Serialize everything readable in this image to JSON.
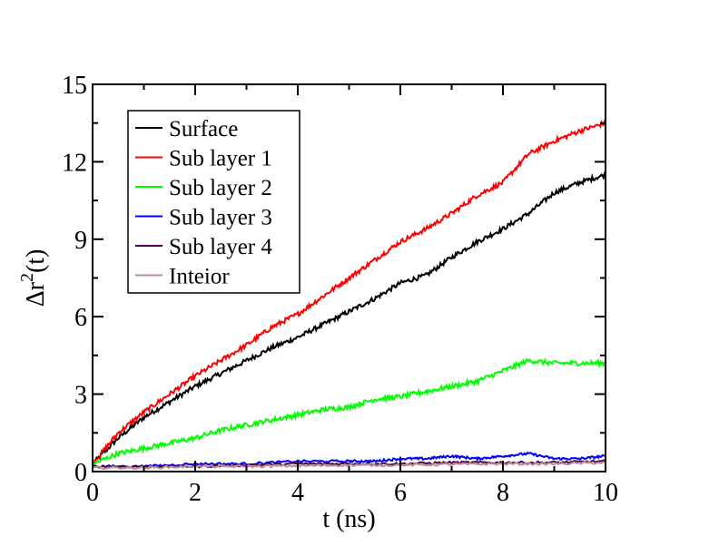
{
  "chart_data": {
    "type": "line",
    "xlabel": "t (ns)",
    "ylabel": {
      "base": "Δr",
      "sup": "2",
      "suffix": "(t)"
    },
    "xlim": [
      0,
      10
    ],
    "ylim": [
      0,
      15
    ],
    "xticks": [
      0,
      2,
      4,
      6,
      8,
      10
    ],
    "yticks": [
      0,
      3,
      6,
      9,
      12,
      15
    ],
    "grid": false,
    "legend_position": "top-left",
    "series": [
      {
        "name": "Surface",
        "color": "#000000",
        "points": [
          [
            0,
            0.3
          ],
          [
            0.5,
            1.3
          ],
          [
            1,
            2.1
          ],
          [
            1.5,
            2.7
          ],
          [
            2,
            3.3
          ],
          [
            2.5,
            3.8
          ],
          [
            3,
            4.3
          ],
          [
            3.5,
            4.8
          ],
          [
            4,
            5.2
          ],
          [
            4.5,
            5.7
          ],
          [
            5,
            6.2
          ],
          [
            5.5,
            6.7
          ],
          [
            6,
            7.3
          ],
          [
            6.5,
            7.6
          ],
          [
            7,
            8.3
          ],
          [
            7.5,
            8.9
          ],
          [
            8,
            9.4
          ],
          [
            8.5,
            10.0
          ],
          [
            9,
            10.8
          ],
          [
            9.5,
            11.2
          ],
          [
            10,
            11.5
          ]
        ]
      },
      {
        "name": "Sub layer 1",
        "color": "#ff0000",
        "points": [
          [
            0,
            0.3
          ],
          [
            0.5,
            1.5
          ],
          [
            1,
            2.3
          ],
          [
            1.5,
            3.0
          ],
          [
            2,
            3.7
          ],
          [
            2.5,
            4.3
          ],
          [
            3,
            4.9
          ],
          [
            3.5,
            5.6
          ],
          [
            4,
            6.1
          ],
          [
            4.5,
            6.8
          ],
          [
            5,
            7.5
          ],
          [
            5.5,
            8.2
          ],
          [
            6,
            8.9
          ],
          [
            6.5,
            9.4
          ],
          [
            7,
            10.0
          ],
          [
            7.5,
            10.7
          ],
          [
            8,
            11.2
          ],
          [
            8.5,
            12.3
          ],
          [
            9,
            12.8
          ],
          [
            9.5,
            13.2
          ],
          [
            10,
            13.5
          ]
        ]
      },
      {
        "name": "Sub layer 2",
        "color": "#00ff00",
        "points": [
          [
            0,
            0.3
          ],
          [
            0.5,
            0.7
          ],
          [
            1,
            0.9
          ],
          [
            1.5,
            1.1
          ],
          [
            2,
            1.3
          ],
          [
            2.5,
            1.6
          ],
          [
            3,
            1.8
          ],
          [
            3.5,
            2.0
          ],
          [
            4,
            2.2
          ],
          [
            4.5,
            2.4
          ],
          [
            5,
            2.5
          ],
          [
            5.5,
            2.8
          ],
          [
            6,
            2.9
          ],
          [
            6.5,
            3.1
          ],
          [
            7,
            3.3
          ],
          [
            7.5,
            3.5
          ],
          [
            8,
            3.9
          ],
          [
            8.5,
            4.3
          ],
          [
            9,
            4.2
          ],
          [
            9.5,
            4.2
          ],
          [
            10,
            4.2
          ]
        ]
      },
      {
        "name": "Sub layer 3",
        "color": "#0000ff",
        "points": [
          [
            0,
            0.2
          ],
          [
            1,
            0.2
          ],
          [
            2,
            0.3
          ],
          [
            3,
            0.3
          ],
          [
            4,
            0.4
          ],
          [
            5,
            0.4
          ],
          [
            5.5,
            0.4
          ],
          [
            6,
            0.5
          ],
          [
            6.5,
            0.5
          ],
          [
            7,
            0.6
          ],
          [
            7.5,
            0.5
          ],
          [
            8,
            0.6
          ],
          [
            8.5,
            0.7
          ],
          [
            9,
            0.5
          ],
          [
            9.5,
            0.5
          ],
          [
            10,
            0.6
          ]
        ]
      },
      {
        "name": "Sub layer 4",
        "color": "#4b0049",
        "points": [
          [
            0,
            0.2
          ],
          [
            1,
            0.2
          ],
          [
            2,
            0.2
          ],
          [
            3,
            0.25
          ],
          [
            4,
            0.3
          ],
          [
            5,
            0.3
          ],
          [
            6,
            0.3
          ],
          [
            7,
            0.35
          ],
          [
            8,
            0.35
          ],
          [
            9,
            0.35
          ],
          [
            10,
            0.4
          ]
        ]
      },
      {
        "name": "Inteior",
        "color": "#bc8f8f",
        "points": [
          [
            0,
            0.15
          ],
          [
            1,
            0.15
          ],
          [
            2,
            0.2
          ],
          [
            3,
            0.2
          ],
          [
            4,
            0.22
          ],
          [
            5,
            0.25
          ],
          [
            6,
            0.25
          ],
          [
            7,
            0.28
          ],
          [
            8,
            0.3
          ],
          [
            9,
            0.3
          ],
          [
            10,
            0.35
          ]
        ]
      }
    ]
  }
}
